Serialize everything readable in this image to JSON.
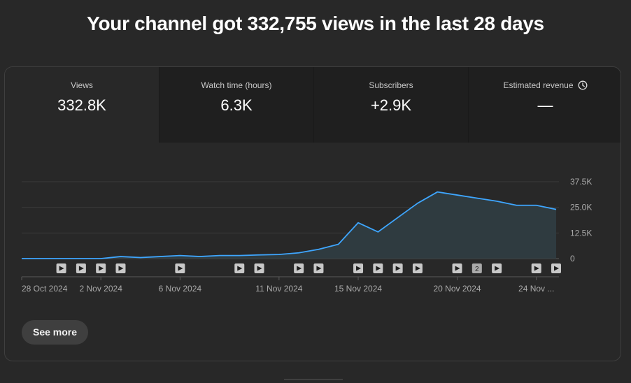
{
  "headline": "Your channel got 332,755 views in the last 28 days",
  "metrics": [
    {
      "label": "Views",
      "value": "332.8K",
      "active": true
    },
    {
      "label": "Watch time (hours)",
      "value": "6.3K",
      "active": false
    },
    {
      "label": "Subscribers",
      "value": "+2.9K",
      "active": false
    },
    {
      "label": "Estimated revenue",
      "value": "—",
      "active": false,
      "icon": "clock-icon"
    }
  ],
  "see_more_label": "See more",
  "video_markers": [
    {
      "day": 2
    },
    {
      "day": 3
    },
    {
      "day": 4
    },
    {
      "day": 5
    },
    {
      "day": 8
    },
    {
      "day": 11
    },
    {
      "day": 12
    },
    {
      "day": 14
    },
    {
      "day": 15
    },
    {
      "day": 17
    },
    {
      "day": 18
    },
    {
      "day": 19
    },
    {
      "day": 20
    },
    {
      "day": 22
    },
    {
      "day": 23,
      "count": "2"
    },
    {
      "day": 24
    },
    {
      "day": 26
    },
    {
      "day": 27
    }
  ],
  "chart_data": {
    "type": "area",
    "x": [
      "28 Oct 2024",
      "29 Oct 2024",
      "30 Oct 2024",
      "31 Oct 2024",
      "1 Nov 2024",
      "2 Nov 2024",
      "3 Nov 2024",
      "4 Nov 2024",
      "5 Nov 2024",
      "6 Nov 2024",
      "7 Nov 2024",
      "8 Nov 2024",
      "9 Nov 2024",
      "10 Nov 2024",
      "11 Nov 2024",
      "12 Nov 2024",
      "13 Nov 2024",
      "14 Nov 2024",
      "15 Nov 2024",
      "16 Nov 2024",
      "17 Nov 2024",
      "18 Nov 2024",
      "19 Nov 2024",
      "20 Nov 2024",
      "21 Nov 2024",
      "22 Nov 2024",
      "23 Nov 2024",
      "24 Nov 2024"
    ],
    "series": [
      {
        "values": [
          0,
          0,
          0,
          0,
          0,
          1000,
          500,
          1000,
          1500,
          1000,
          1500,
          1500,
          1800,
          2000,
          2800,
          4500,
          7000,
          17500,
          13000,
          20000,
          27000,
          32500,
          31000,
          29500,
          28000,
          26000,
          26000,
          24000
        ]
      }
    ],
    "tick_labels": [
      "28 Oct 2024",
      "2 Nov 2024",
      "6 Nov 2024",
      "11 Nov 2024",
      "15 Nov 2024",
      "20 Nov 2024",
      "24 Nov ..."
    ],
    "tick_days": [
      0,
      4,
      8,
      13,
      17,
      22,
      26
    ],
    "y_ticks": [
      {
        "value": 37500,
        "label": "37.5K"
      },
      {
        "value": 25000,
        "label": "25.0K"
      },
      {
        "value": 12500,
        "label": "12.5K"
      },
      {
        "value": 0,
        "label": "0"
      }
    ],
    "ylim": [
      0,
      37500
    ],
    "line_color": "#3ea6ff",
    "fill_color": "#2f3b40",
    "grid": true
  }
}
